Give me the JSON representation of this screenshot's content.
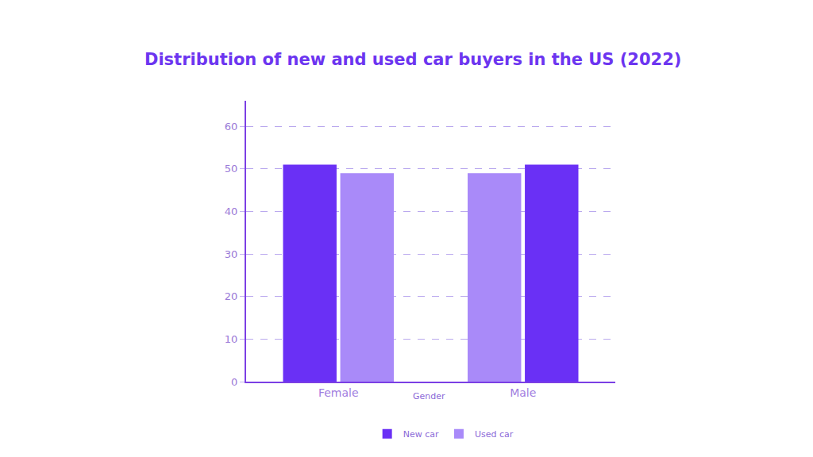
{
  "chart_data": {
    "type": "bar",
    "title": "Distribution of new and used car buyers in the US (2022)",
    "x_label": "Gender",
    "categories": [
      "Female",
      "Male"
    ],
    "series": [
      {
        "name": "New car",
        "color": "#6a30f5",
        "values": [
          51,
          51
        ]
      },
      {
        "name": "Used car",
        "color": "#a98af9",
        "values": [
          49,
          49
        ]
      }
    ],
    "ylim": [
      0,
      66
    ],
    "yticks": [
      0,
      10,
      20,
      30,
      40,
      50,
      60
    ],
    "grid": true,
    "legend": "bottom"
  }
}
